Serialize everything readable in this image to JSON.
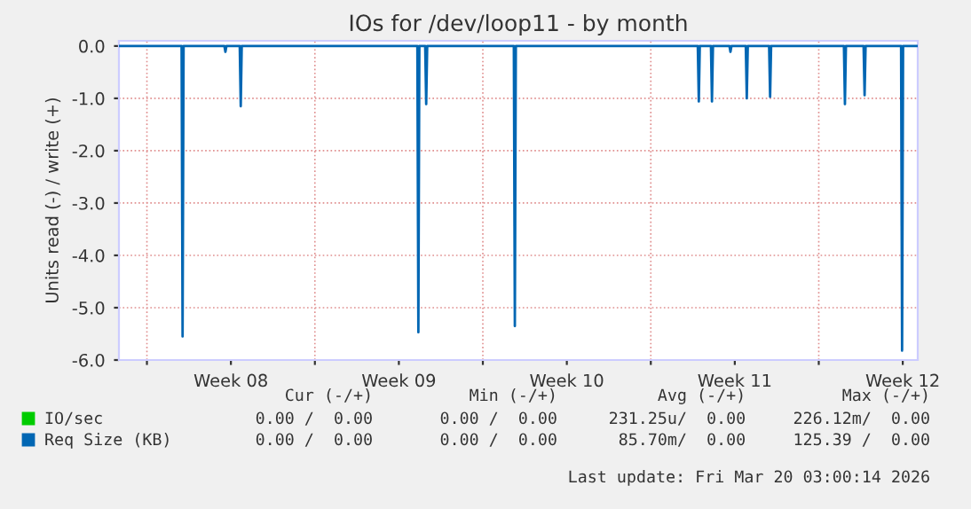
{
  "chart_data": {
    "type": "line",
    "title": "IOs for /dev/loop11 - by month",
    "ylabel": "Units read (-) / write (+)",
    "xlim": [
      "2026-02-14T20:00",
      "2026-03-20T03:00"
    ],
    "xticks": [
      {
        "value": "2026-02-16T00:00",
        "label": null
      },
      {
        "value": "2026-02-19T12:00",
        "label": "Week 08"
      },
      {
        "value": "2026-02-23T00:00",
        "label": null
      },
      {
        "value": "2026-02-26T12:00",
        "label": "Week 09"
      },
      {
        "value": "2026-03-02T00:00",
        "label": null
      },
      {
        "value": "2026-03-05T12:00",
        "label": "Week 10"
      },
      {
        "value": "2026-03-09T00:00",
        "label": null
      },
      {
        "value": "2026-03-12T12:00",
        "label": "Week 11"
      },
      {
        "value": "2026-03-16T00:00",
        "label": null
      },
      {
        "value": "2026-03-19T12:00",
        "label": "Week 12"
      }
    ],
    "ylim": [
      -6.0,
      0.1
    ],
    "yticks": [
      {
        "value": -6.0,
        "label": "-6.0"
      },
      {
        "value": -5.0,
        "label": "-5.0"
      },
      {
        "value": -4.0,
        "label": "-4.0"
      },
      {
        "value": -3.0,
        "label": "-3.0"
      },
      {
        "value": -2.0,
        "label": "-2.0"
      },
      {
        "value": -1.0,
        "label": "-1.0"
      },
      {
        "value": 0.0,
        "label": "0.0"
      }
    ],
    "grid": true,
    "legend": "bottom",
    "marker": "none",
    "line_style": "solid",
    "series": [
      {
        "name": "IO/sec",
        "color": "#00cc00"
      },
      {
        "name": "Req Size (KB)",
        "color": "#0066b3",
        "x": [
          "2026-02-14T20:00",
          "2026-02-17T10:40",
          "2026-02-17T11:40",
          "2026-02-17T12:40",
          "2026-02-19T05:30",
          "2026-02-19T06:30",
          "2026-02-19T07:30",
          "2026-02-19T20:50",
          "2026-02-19T21:50",
          "2026-02-19T22:50",
          "2026-02-27T06:30",
          "2026-02-27T07:30",
          "2026-02-27T08:30",
          "2026-02-27T14:20",
          "2026-02-27T15:20",
          "2026-02-27T16:20",
          "2026-03-03T07:00",
          "2026-03-03T08:00",
          "2026-03-03T09:00",
          "2026-03-10T23:00",
          "2026-03-11T00:00",
          "2026-03-11T01:00",
          "2026-03-11T12:10",
          "2026-03-11T13:10",
          "2026-03-11T14:10",
          "2026-03-12T06:40",
          "2026-03-12T07:40",
          "2026-03-12T08:40",
          "2026-03-12T23:00",
          "2026-03-13T00:00",
          "2026-03-13T01:00",
          "2026-03-13T22:20",
          "2026-03-13T23:20",
          "2026-03-14T00:20",
          "2026-03-17T01:10",
          "2026-03-17T02:10",
          "2026-03-17T03:10",
          "2026-03-17T20:50",
          "2026-03-17T21:50",
          "2026-03-17T22:50",
          "2026-03-19T10:20",
          "2026-03-19T11:20",
          "2026-03-19T12:20",
          "2026-03-20T03:00"
        ],
        "values": [
          0.0,
          0.0,
          -5.55,
          0.0,
          0.0,
          -0.11,
          0.0,
          0.0,
          -1.15,
          0.0,
          0.0,
          -5.47,
          0.0,
          0.0,
          -1.11,
          0.0,
          0.0,
          -5.35,
          0.0,
          0.0,
          -1.06,
          0.0,
          0.0,
          -1.06,
          0.0,
          0.0,
          -0.11,
          0.0,
          0.0,
          -1.0,
          0.0,
          0.0,
          -0.97,
          0.0,
          0.0,
          -1.11,
          0.0,
          0.0,
          -0.94,
          0.0,
          0.0,
          -5.82,
          0.0,
          0.0
        ]
      }
    ],
    "annotations": [
      "Cur (-/+)",
      "Min (-/+)",
      "Avg (-/+)",
      "Max (-/+)",
      "0.00 /  0.00",
      "0.00 /  0.00",
      "231.25u/  0.00",
      "226.12m/  0.00",
      "0.00 /  0.00",
      "0.00 /  0.00",
      "85.70m/  0.00",
      "125.39 /  0.00",
      "Last update: Fri Mar 20 03:00:14 2026"
    ]
  }
}
